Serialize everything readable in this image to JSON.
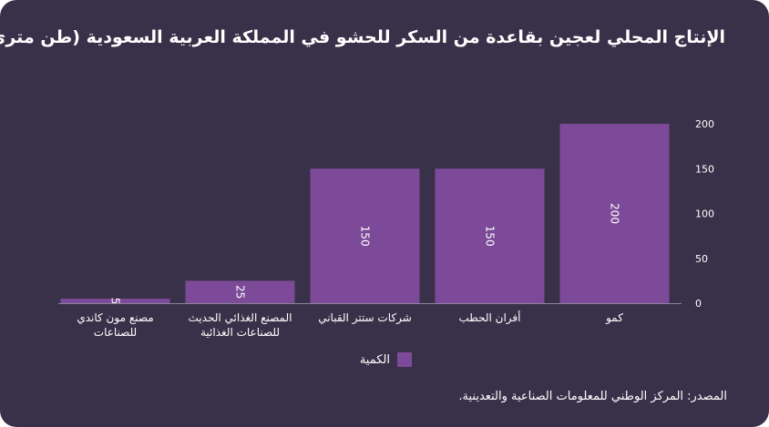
{
  "chart_data": {
    "type": "bar",
    "title": "الإنتاج المحلي لعجين بقاعدة من السكر للحشو في المملكة العربية السعودية (طن متري)",
    "categories": [
      "كمو",
      "أفران الحطب",
      "شركات ستتر القباني",
      "المصنع الغذائي الحديث للصناعات الغذائية",
      "مصنع مون كاندي للصناعات"
    ],
    "category_lines": [
      [
        "كمو"
      ],
      [
        "أفران الحطب"
      ],
      [
        "شركات ستتر القباني"
      ],
      [
        "المصنع الغذائي الحديث",
        "للصناعات الغذائية"
      ],
      [
        "مصنع مون كاندي",
        "للصناعات"
      ]
    ],
    "series": [
      {
        "name": "الكمية",
        "values": [
          200,
          150,
          150,
          25,
          5
        ]
      }
    ],
    "data_labels": [
      "200",
      "150",
      "150",
      "25",
      "5"
    ],
    "ylim": [
      0,
      200
    ],
    "yticks": [
      0,
      50,
      100,
      150,
      200
    ],
    "ytick_labels": [
      "0",
      "50",
      "100",
      "150",
      "200"
    ],
    "y_axis_side": "right",
    "xlabel": "",
    "ylabel": "",
    "legend_position": "bottom-center",
    "colors": {
      "bar": "#7c4a98",
      "background": "#393149",
      "text": "#ffffff",
      "axis": "#8a8398"
    }
  },
  "legend": {
    "label": "الكمية"
  },
  "source": "المصدر: المركز الوطني للمعلومات الصناعية والتعدينية."
}
